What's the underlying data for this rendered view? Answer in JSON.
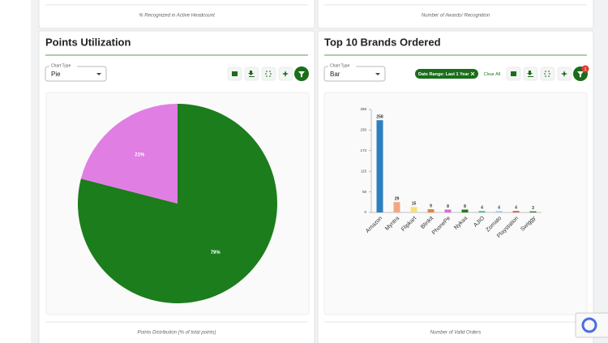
{
  "ui": {
    "top_left_caption": "% Recognized in Active Headcount",
    "top_right_caption": "Number of Awards/ Recognition",
    "left_title": "Points Utilization",
    "right_title": "Top 10 Brands Ordered",
    "left_select_label": "Chart Type",
    "left_select_value": "Pie",
    "right_select_label": "Chart Type",
    "right_select_value": "Bar",
    "filter_chip": "Date Range: Last 1 Year",
    "clear_all": "Clear All",
    "filter_badge": "1",
    "left_caption": "Points Distribution (% of total points)",
    "right_caption": "Number of Valid Orders"
  },
  "chart_data": [
    {
      "type": "pie",
      "values": [
        79,
        21
      ],
      "value_labels": [
        "79%",
        "21%"
      ],
      "colors": [
        "#1b7d1b",
        "#e07ee3"
      ]
    },
    {
      "type": "bar",
      "categories": [
        "Amazon",
        "Myntra",
        "Flipkart",
        "Blinkit",
        "PhonePe",
        "Nykaa",
        "AJIO",
        "Zomato",
        "Playstation",
        "Swiggy"
      ],
      "values": [
        258,
        29,
        15,
        9,
        8,
        8,
        4,
        4,
        4,
        3
      ],
      "colors": [
        "#2f7fbf",
        "#f4a582",
        "#f6e07a",
        "#e6843a",
        "#d86ad8",
        "#1b7d1b",
        "#3fbf9f",
        "#9ad0f0",
        "#e05050",
        "#2a7a2a"
      ],
      "ylim": [
        0,
        288
      ],
      "yticks": [
        0,
        {
          "value": 57.6,
          "label": "58"
        },
        {
          "value": 115.2,
          "label": "115"
        },
        {
          "value": 172.8,
          "label": "173"
        },
        {
          "value": 230.4,
          "label": "230"
        },
        288
      ]
    }
  ]
}
